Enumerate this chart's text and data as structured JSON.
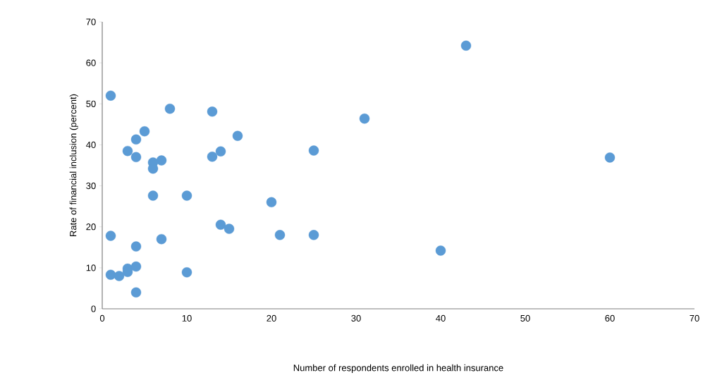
{
  "chart_data": {
    "type": "scatter",
    "xlabel": "Number of respondents  enrolled  in health  insurance",
    "ylabel": "Rate  of financial inclusion  (percent)",
    "x": [
      1,
      1,
      1,
      2,
      3,
      3,
      3,
      4,
      4,
      4,
      4,
      4,
      5,
      6,
      6,
      6,
      7,
      7,
      8,
      10,
      10,
      13,
      13,
      14,
      14,
      15,
      16,
      20,
      21,
      25,
      25,
      31,
      40,
      43,
      60
    ],
    "values": [
      52,
      17.8,
      8.3,
      8,
      9.8,
      9,
      38.5,
      41.3,
      37,
      15.2,
      10.3,
      4,
      43.3,
      35.7,
      34.2,
      27.6,
      36.2,
      17,
      48.8,
      27.6,
      8.9,
      48.1,
      37.1,
      38.4,
      20.5,
      19.5,
      42.2,
      26,
      18,
      38.6,
      18,
      46.4,
      14.2,
      64.2,
      36.9
    ],
    "color": "#5b9bd5",
    "marker": "circle",
    "xlim": [
      0,
      70
    ],
    "xticks": [
      0,
      10,
      20,
      30,
      40,
      50,
      60,
      70
    ],
    "ylim": [
      0,
      70
    ],
    "yticks": [
      0,
      10,
      20,
      30,
      40,
      50,
      60,
      70
    ],
    "grid": false
  }
}
